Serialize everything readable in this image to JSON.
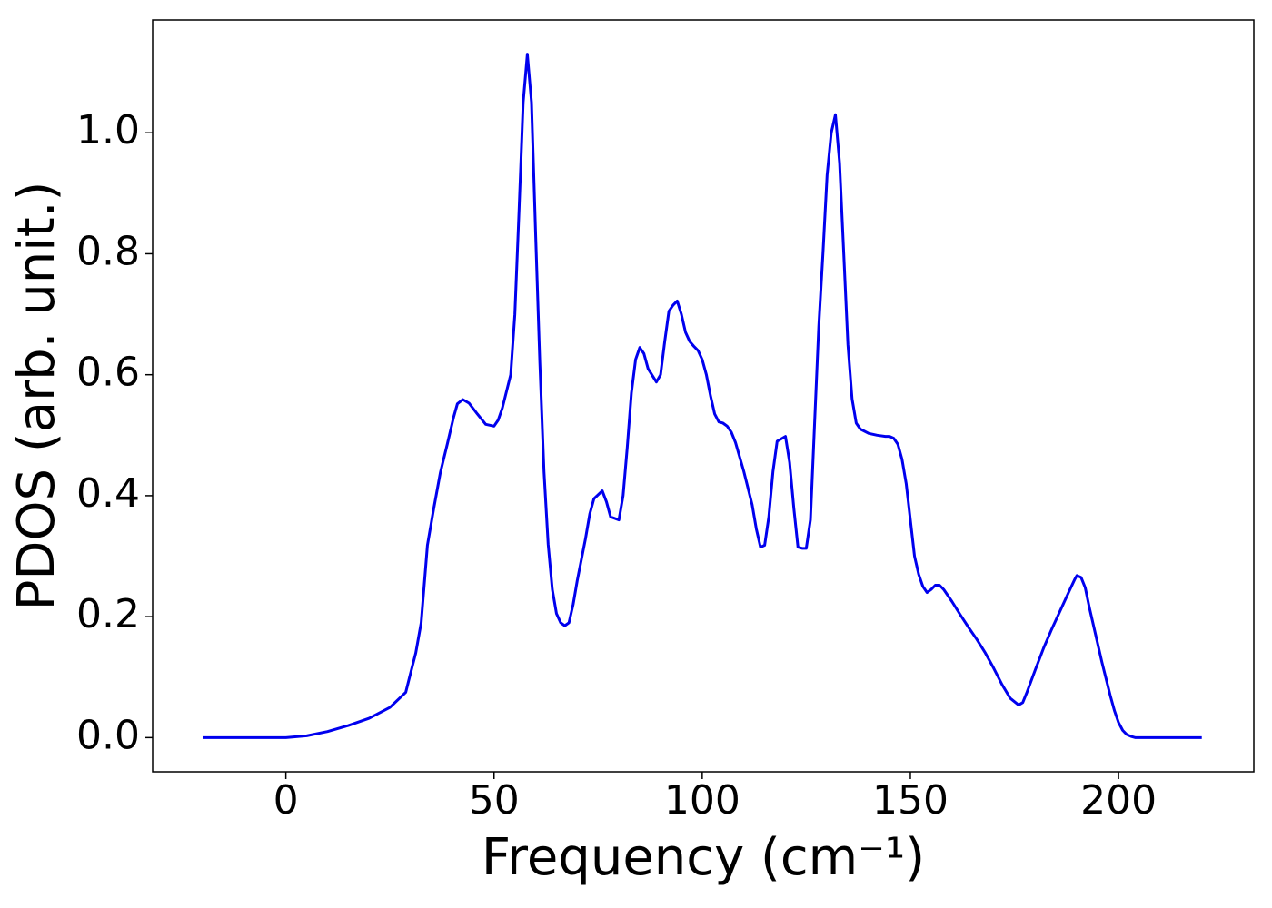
{
  "chart_data": {
    "type": "line",
    "xlabel": "Frequency (cm⁻¹)",
    "ylabel": "PDOS (arb. unit.)",
    "xlim": [
      -32,
      232.5
    ],
    "ylim": [
      -0.0565,
      1.1865
    ],
    "xticks": [
      0,
      50,
      100,
      150,
      200
    ],
    "yticks": [
      {
        "value": 0,
        "label": "0.0"
      },
      {
        "value": 0.2,
        "label": "0.2"
      },
      {
        "value": 0.4,
        "label": "0.4"
      },
      {
        "value": 0.6,
        "label": "0.6"
      },
      {
        "value": 0.8,
        "label": "0.8"
      },
      {
        "value": 1,
        "label": "1.0"
      }
    ],
    "grid": false,
    "x": [
      -20,
      -10,
      0,
      5,
      10,
      15,
      20,
      25,
      28.8,
      29.9,
      31.2,
      32.5,
      34,
      35.5,
      37.1,
      38.8,
      40.3,
      41.2,
      42.5,
      44,
      46,
      48,
      50,
      51,
      52,
      54,
      55,
      56,
      57,
      58,
      59,
      60,
      61,
      62,
      63,
      64,
      65,
      66,
      67,
      68,
      69,
      70,
      72,
      73,
      74,
      76,
      77,
      78,
      80,
      81,
      82,
      83,
      84,
      85,
      86,
      87,
      89,
      90,
      91,
      92,
      93,
      94,
      95,
      96,
      97,
      98,
      99,
      100,
      101,
      102,
      103,
      104,
      105,
      106,
      107,
      108,
      110,
      112,
      113,
      114,
      115,
      116,
      117,
      118,
      120,
      121,
      122,
      123,
      124,
      125,
      126,
      127,
      128,
      129,
      130,
      131,
      132,
      133,
      134,
      135,
      136,
      137,
      138,
      140,
      142,
      144,
      145,
      146,
      147,
      148,
      149,
      150,
      151,
      152,
      153,
      154,
      155,
      156,
      157,
      158,
      160,
      162,
      164,
      166,
      168,
      170,
      172,
      174,
      176,
      177,
      178,
      180,
      182,
      184,
      186,
      188,
      189.5,
      190,
      191,
      192,
      193,
      194,
      196,
      198,
      199,
      200,
      201,
      202,
      203,
      204,
      210,
      220
    ],
    "series": [
      {
        "name": "PDOS",
        "color": "#0000ee",
        "values": [
          0,
          0,
          0,
          0.003,
          0.01,
          0.02,
          0.032,
          0.05,
          0.075,
          0.105,
          0.14,
          0.19,
          0.318,
          0.378,
          0.438,
          0.486,
          0.53,
          0.552,
          0.559,
          0.553,
          0.535,
          0.518,
          0.515,
          0.525,
          0.545,
          0.6,
          0.7,
          0.87,
          1.05,
          1.13,
          1.05,
          0.83,
          0.62,
          0.44,
          0.32,
          0.245,
          0.205,
          0.19,
          0.185,
          0.19,
          0.22,
          0.26,
          0.33,
          0.37,
          0.395,
          0.408,
          0.39,
          0.365,
          0.36,
          0.4,
          0.48,
          0.57,
          0.625,
          0.645,
          0.635,
          0.61,
          0.588,
          0.6,
          0.655,
          0.705,
          0.715,
          0.722,
          0.7,
          0.67,
          0.655,
          0.647,
          0.64,
          0.625,
          0.6,
          0.565,
          0.535,
          0.522,
          0.52,
          0.515,
          0.505,
          0.488,
          0.44,
          0.385,
          0.345,
          0.315,
          0.318,
          0.365,
          0.44,
          0.49,
          0.498,
          0.455,
          0.38,
          0.315,
          0.313,
          0.313,
          0.36,
          0.52,
          0.68,
          0.8,
          0.93,
          1.0,
          1.03,
          0.95,
          0.8,
          0.65,
          0.56,
          0.52,
          0.51,
          0.503,
          0.5,
          0.498,
          0.498,
          0.495,
          0.485,
          0.46,
          0.42,
          0.36,
          0.3,
          0.27,
          0.25,
          0.24,
          0.245,
          0.252,
          0.252,
          0.245,
          0.225,
          0.203,
          0.182,
          0.162,
          0.14,
          0.115,
          0.088,
          0.065,
          0.054,
          0.058,
          0.075,
          0.112,
          0.148,
          0.18,
          0.21,
          0.24,
          0.262,
          0.268,
          0.265,
          0.248,
          0.215,
          0.185,
          0.125,
          0.07,
          0.045,
          0.025,
          0.012,
          0.005,
          0.002,
          0,
          0,
          0
        ]
      }
    ]
  }
}
